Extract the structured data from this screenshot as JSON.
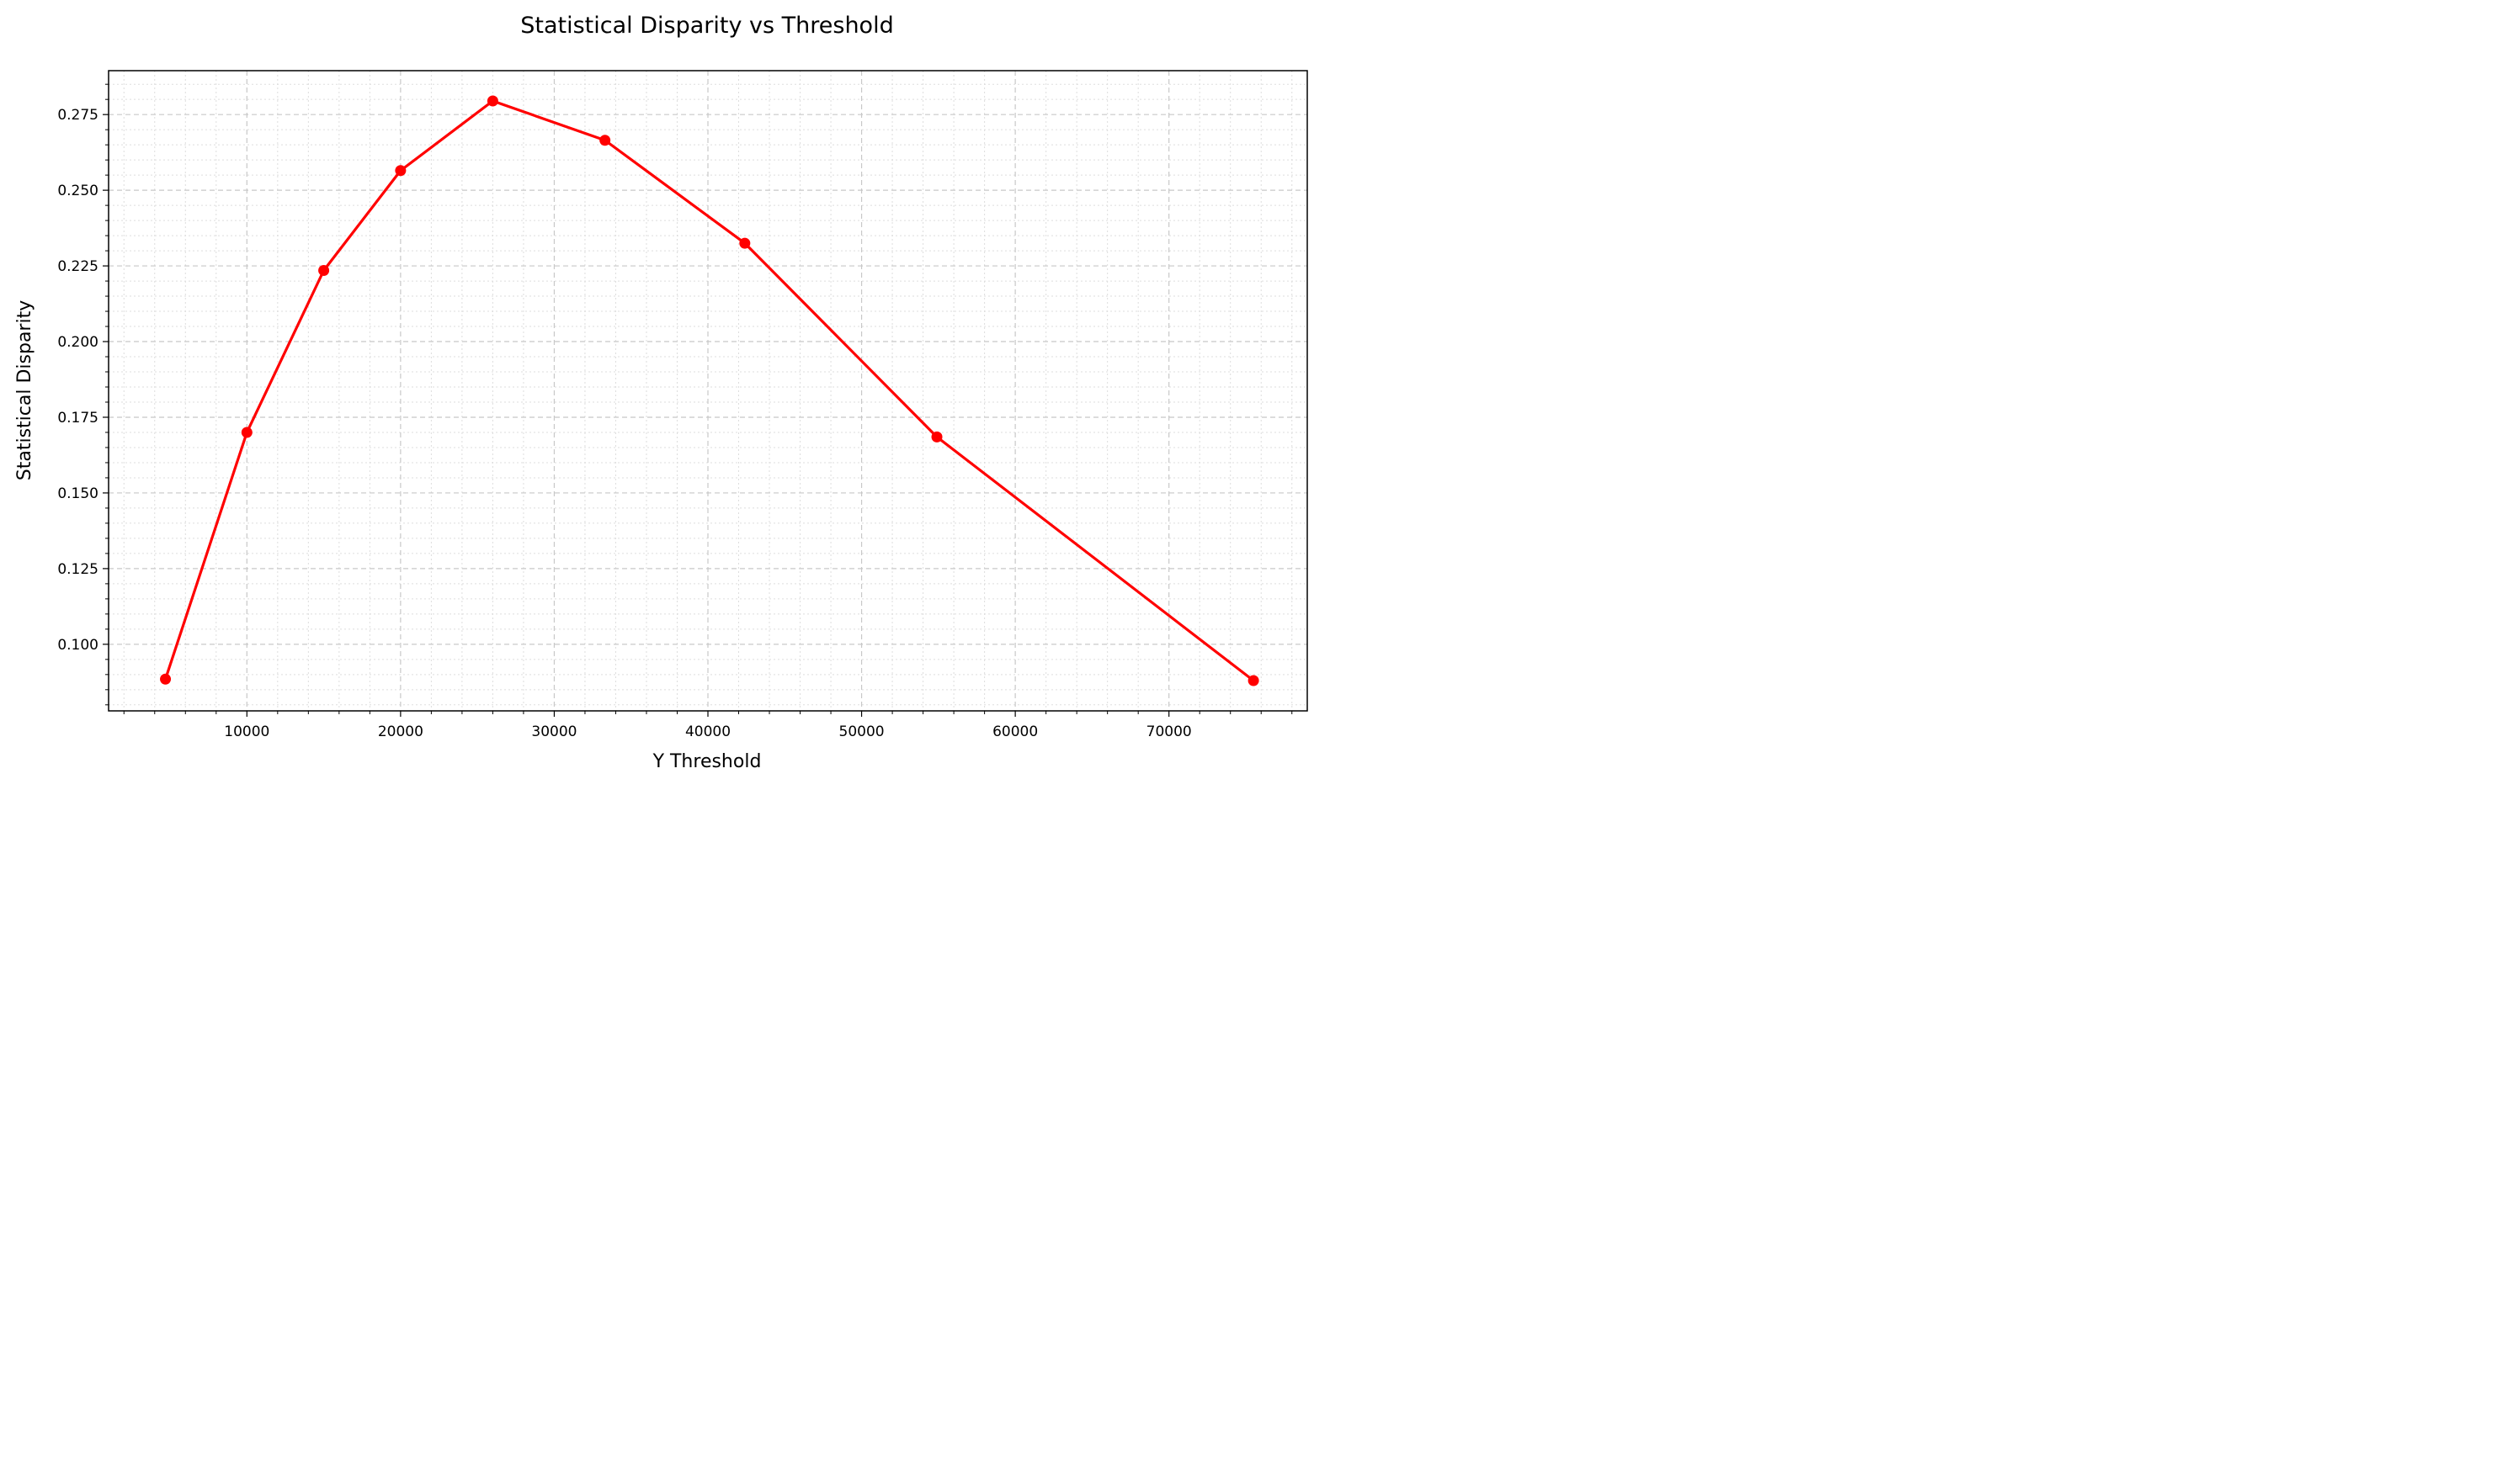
{
  "chart_data": {
    "type": "line",
    "title": "Statistical Disparity vs Threshold",
    "xlabel": "Y Threshold",
    "ylabel": "Statistical Disparity",
    "xlim": [
      1000,
      79000
    ],
    "ylim": [
      0.078,
      0.2895
    ],
    "x_ticks": [
      10000,
      20000,
      30000,
      40000,
      50000,
      60000,
      70000
    ],
    "x_tick_labels": [
      "10000",
      "20000",
      "30000",
      "40000",
      "50000",
      "60000",
      "70000"
    ],
    "y_ticks": [
      0.1,
      0.125,
      0.15,
      0.175,
      0.2,
      0.225,
      0.25,
      0.275
    ],
    "y_tick_labels": [
      "0.100",
      "0.125",
      "0.150",
      "0.175",
      "0.200",
      "0.225",
      "0.250",
      "0.275"
    ],
    "grid": true,
    "minor_grid": true,
    "series": [
      {
        "color": "#ff0000",
        "marker": "circle",
        "x": [
          4700,
          10000,
          15000,
          20000,
          26000,
          33300,
          42400,
          54900,
          75500
        ],
        "y": [
          0.0885,
          0.17,
          0.2235,
          0.2565,
          0.2795,
          0.2665,
          0.2325,
          0.1685,
          0.088
        ]
      }
    ]
  }
}
